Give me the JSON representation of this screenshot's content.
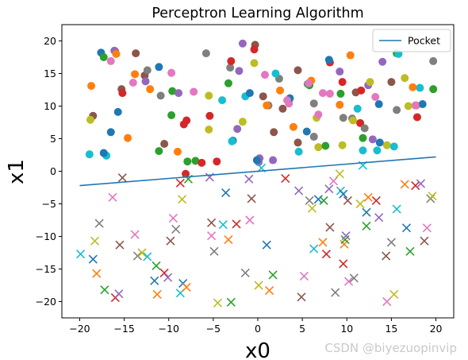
{
  "chart_data": {
    "type": "scatter",
    "title": "Perceptron Learning Algorithm",
    "xlabel": "x0",
    "ylabel": "x1",
    "xlim": [
      -22,
      22
    ],
    "ylim": [
      -22.5,
      22.5
    ],
    "xticks": [
      -20,
      -15,
      -10,
      -5,
      0,
      5,
      10,
      15,
      20
    ],
    "yticks": [
      -20,
      -15,
      -10,
      -5,
      0,
      5,
      10,
      15,
      20
    ],
    "legend": {
      "position": "top-right",
      "entries": [
        "Pocket"
      ]
    },
    "grid": false,
    "line": {
      "name": "Pocket",
      "color": "#1f77b4",
      "x": [
        -20,
        20
      ],
      "y": [
        -2.2,
        2.2
      ]
    },
    "series": [
      {
        "marker": "circle",
        "points": [
          [
            -17.6,
            18.2
          ],
          [
            -12.1,
            12.6
          ],
          [
            -9.6,
            12.3
          ],
          [
            -8.0,
            7.8
          ],
          [
            -2.1,
            15.4
          ],
          [
            -0.3,
            19.4
          ],
          [
            0.8,
            14.8
          ],
          [
            2.4,
            14.2
          ],
          [
            6.8,
            3.7
          ],
          [
            13.4,
            3.2
          ],
          [
            13.7,
            4.4
          ],
          [
            17.8,
            10.1
          ],
          [
            19.7,
            12.6
          ],
          [
            -8.3,
            7.2
          ],
          [
            -8.9,
            12.0
          ],
          [
            -12.7,
            14.7
          ],
          [
            3.5,
            10.4
          ],
          [
            1.2,
            10.1
          ],
          [
            6.6,
            8.2
          ],
          [
            11.8,
            3.2
          ],
          [
            -15.7,
            9.1
          ],
          [
            -14.6,
            5.1
          ],
          [
            -11.1,
            3.1
          ],
          [
            -8.1,
            -0.4
          ],
          [
            -16.1,
            18.5
          ],
          [
            -15.3,
            12.6
          ],
          [
            -14.0,
            13.6
          ],
          [
            -12.4,
            15.5
          ],
          [
            -5.5,
            6.4
          ],
          [
            -1.4,
            11.5
          ],
          [
            -0.9,
            12.0
          ],
          [
            2.5,
            12.4
          ],
          [
            5.8,
            13.2
          ],
          [
            8.1,
            16.7
          ],
          [
            9.2,
            15.3
          ],
          [
            11.0,
            12.1
          ],
          [
            13.2,
            11.4
          ],
          [
            15.6,
            9.4
          ],
          [
            16.5,
            14.3
          ],
          [
            18.2,
            12.8
          ],
          [
            18.5,
            10.3
          ],
          [
            -18.7,
            13.1
          ],
          [
            -17.3,
            17.5
          ],
          [
            -15.2,
            12.0
          ],
          [
            -12.6,
            13.8
          ],
          [
            -10.5,
            4.2
          ],
          [
            -7.2,
            12.2
          ],
          [
            -3.1,
            15.9
          ],
          [
            -1.7,
            7.6
          ],
          [
            4.6,
            3.0
          ],
          [
            8.0,
            17.1
          ],
          [
            10.4,
            17.8
          ],
          [
            15.6,
            18.1
          ],
          [
            17.9,
            8.3
          ],
          [
            -16.0,
            18.4
          ],
          [
            -13.7,
            18.1
          ],
          [
            -9.7,
            15.1
          ],
          [
            -5.8,
            18.1
          ],
          [
            -0.4,
            16.6
          ],
          [
            2.0,
            15.0
          ],
          [
            3.6,
            11.2
          ],
          [
            6.0,
            13.9
          ],
          [
            9.3,
            11.9
          ],
          [
            11.5,
            7.4
          ],
          [
            12.9,
            4.9
          ],
          [
            -18.5,
            8.5
          ],
          [
            -16.5,
            16.9
          ],
          [
            -10.9,
            11.6
          ],
          [
            -5.5,
            11.6
          ],
          [
            -4.0,
            10.9
          ],
          [
            -2.8,
            4.7
          ],
          [
            1.0,
            10.1
          ],
          [
            5.6,
            13.4
          ],
          [
            9.5,
            13.7
          ],
          [
            12.4,
            13.2
          ],
          [
            15.0,
            13.7
          ],
          [
            17.7,
            10.1
          ],
          [
            19.7,
            16.9
          ],
          [
            -18.8,
            7.9
          ],
          [
            -17.0,
            2.4
          ],
          [
            -11.1,
            16.0
          ],
          [
            -9.0,
            3.0
          ],
          [
            -3.3,
            13.5
          ],
          [
            -0.4,
            18.7
          ],
          [
            1.7,
            1.7
          ],
          [
            4.5,
            15.5
          ],
          [
            7.3,
            12.0
          ],
          [
            9.6,
            8.2
          ],
          [
            12.6,
            13.7
          ],
          [
            15.8,
            18.0
          ],
          [
            -17.3,
            2.8
          ],
          [
            -15.9,
            18.0
          ],
          [
            -7.9,
            1.5
          ],
          [
            -3.0,
            16.9
          ],
          [
            0.1,
            1.4
          ],
          [
            4.5,
            4.4
          ],
          [
            8.1,
            11.9
          ],
          [
            10.6,
            8.1
          ],
          [
            14.5,
            4.0
          ],
          [
            -18.9,
            2.6
          ],
          [
            -16.5,
            6.0
          ],
          [
            -13.8,
            14.9
          ],
          [
            -9.7,
            8.6
          ],
          [
            -5.4,
            8.5
          ],
          [
            -1.7,
            19.6
          ],
          [
            1.8,
            6.0
          ],
          [
            5.7,
            13.5
          ],
          [
            6.3,
            10.4
          ],
          [
            9.5,
            4.0
          ],
          [
            11.2,
            9.6
          ],
          [
            13.6,
            10.3
          ],
          [
            17.4,
            12.9
          ],
          [
            -7.0,
            1.6
          ],
          [
            -4.6,
            1.5
          ],
          [
            0.2,
            2.0
          ],
          [
            2.8,
            9.6
          ],
          [
            6.8,
            8.7
          ],
          [
            12.0,
            6.6
          ],
          [
            16.9,
            10.0
          ],
          [
            -2.9,
            4.6
          ],
          [
            5.5,
            6.1
          ],
          [
            9.2,
            10.2
          ],
          [
            11.8,
            5.1
          ],
          [
            -6.3,
            1.3
          ],
          [
            -2.3,
            6.5
          ],
          [
            0.6,
            11.5
          ],
          [
            3.3,
            10.9
          ],
          [
            6.3,
            5.3
          ],
          [
            10.7,
            7.8
          ],
          [
            15.3,
            3.8
          ],
          [
            -0.1,
            1.7
          ],
          [
            4.0,
            6.8
          ],
          [
            7.6,
            3.9
          ],
          [
            11.6,
            12.4
          ],
          [
            14.0,
            16.8
          ]
        ]
      },
      {
        "marker": "x",
        "points": [
          [
            -15.2,
            -1.0
          ],
          [
            -16.3,
            -4.0
          ],
          [
            -17.8,
            -8.0
          ],
          [
            -18.3,
            -10.7
          ],
          [
            -19.9,
            -12.7
          ],
          [
            -18.5,
            -13.5
          ],
          [
            -18.1,
            -15.7
          ],
          [
            -17.2,
            -18.2
          ],
          [
            -16.0,
            -19.4
          ],
          [
            -15.6,
            -18.8
          ],
          [
            -15.5,
            -11.3
          ],
          [
            -13.8,
            -9.7
          ],
          [
            -13.5,
            -13.0
          ],
          [
            -13.0,
            -12.5
          ],
          [
            -12.4,
            -13.1
          ],
          [
            -11.6,
            -16.8
          ],
          [
            -11.3,
            -18.9
          ],
          [
            -11.4,
            -14.5
          ],
          [
            -10.5,
            -15.6
          ],
          [
            -10.1,
            -16.3
          ],
          [
            -9.8,
            -10.7
          ],
          [
            -9.5,
            -7.2
          ],
          [
            -9.2,
            -8.9
          ],
          [
            -8.5,
            -4.3
          ],
          [
            -8.7,
            -18.7
          ],
          [
            -8.4,
            -17.2
          ],
          [
            -8.0,
            -17.8
          ],
          [
            -7.8,
            -1.2
          ],
          [
            -8.7,
            -1.8
          ],
          [
            -5.4,
            -0.9
          ],
          [
            -5.2,
            -7.9
          ],
          [
            -5.2,
            -9.9
          ],
          [
            -4.9,
            -12.3
          ],
          [
            -4.5,
            -20.2
          ],
          [
            -3.9,
            -8.2
          ],
          [
            -3.6,
            -3.3
          ],
          [
            -3.3,
            -10.5
          ],
          [
            -3.0,
            -20.1
          ],
          [
            -2.4,
            -8.1
          ],
          [
            -1.0,
            -1.2
          ],
          [
            -0.7,
            -4.2
          ],
          [
            -0.9,
            -7.5
          ],
          [
            -1.4,
            -15.6
          ],
          [
            0.1,
            -17.5
          ],
          [
            0.4,
            0.5
          ],
          [
            1.0,
            -11.3
          ],
          [
            1.3,
            -18.3
          ],
          [
            1.7,
            -15.9
          ],
          [
            3.1,
            -1.1
          ],
          [
            4.6,
            -3.0
          ],
          [
            4.9,
            -19.3
          ],
          [
            5.2,
            -16.1
          ],
          [
            5.8,
            -4.5
          ],
          [
            6.1,
            -5.7
          ],
          [
            6.3,
            -11.9
          ],
          [
            6.8,
            -4.3
          ],
          [
            7.3,
            -10.9
          ],
          [
            7.4,
            -4.5
          ],
          [
            7.7,
            -12.7
          ],
          [
            8.0,
            -2.7
          ],
          [
            8.1,
            -8.6
          ],
          [
            8.5,
            -1.5
          ],
          [
            8.7,
            -18.6
          ],
          [
            9.2,
            -0.4
          ],
          [
            9.3,
            -3.0
          ],
          [
            9.6,
            -3.5
          ],
          [
            9.7,
            -11.2
          ],
          [
            9.8,
            -10.5
          ],
          [
            9.6,
            -14.2
          ],
          [
            9.9,
            -9.9
          ],
          [
            10.1,
            -4.5
          ],
          [
            10.2,
            -16.9
          ],
          [
            10.8,
            -16.4
          ],
          [
            11.5,
            -5.0
          ],
          [
            11.8,
            0.9
          ],
          [
            12.2,
            -6.3
          ],
          [
            12.4,
            -4.0
          ],
          [
            12.2,
            -8.4
          ],
          [
            13.3,
            -4.5
          ],
          [
            13.6,
            -7.1
          ],
          [
            14.4,
            -13.0
          ],
          [
            14.5,
            -20.0
          ],
          [
            15.0,
            -10.9
          ],
          [
            15.3,
            -18.9
          ],
          [
            15.6,
            -5.8
          ],
          [
            16.7,
            -8.7
          ],
          [
            16.5,
            -2.0
          ],
          [
            17.1,
            -12.3
          ],
          [
            17.7,
            -2.2
          ],
          [
            18.3,
            -1.9
          ],
          [
            18.7,
            -10.7
          ],
          [
            19.0,
            -8.7
          ],
          [
            19.4,
            -4.2
          ],
          [
            19.6,
            -3.8
          ]
        ]
      }
    ]
  },
  "watermark": "CSDN @biyezuopinvip"
}
